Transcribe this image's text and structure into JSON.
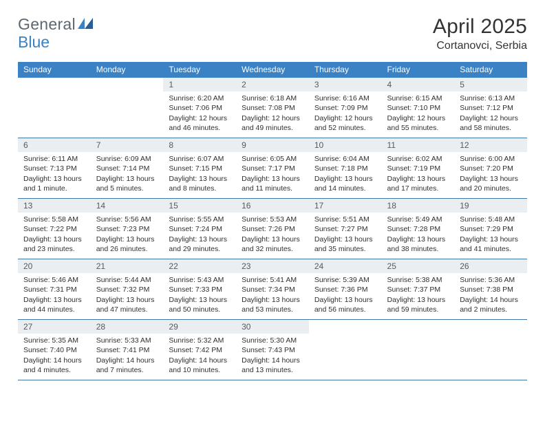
{
  "logo": {
    "part1": "General",
    "part2": "Blue"
  },
  "title": "April 2025",
  "location": "Cortanovci, Serbia",
  "colors": {
    "header_bg": "#3b82c4",
    "header_text": "#ffffff",
    "daynum_bg": "#ebeef0",
    "daynum_text": "#555a5e",
    "border": "#3f76a8",
    "body_text": "#2f2f2f",
    "logo_gray": "#5c6770",
    "logo_blue": "#3b82c4"
  },
  "day_headers": [
    "Sunday",
    "Monday",
    "Tuesday",
    "Wednesday",
    "Thursday",
    "Friday",
    "Saturday"
  ],
  "weeks": [
    [
      null,
      null,
      {
        "num": "1",
        "sunrise": "Sunrise: 6:20 AM",
        "sunset": "Sunset: 7:06 PM",
        "daylight": "Daylight: 12 hours and 46 minutes."
      },
      {
        "num": "2",
        "sunrise": "Sunrise: 6:18 AM",
        "sunset": "Sunset: 7:08 PM",
        "daylight": "Daylight: 12 hours and 49 minutes."
      },
      {
        "num": "3",
        "sunrise": "Sunrise: 6:16 AM",
        "sunset": "Sunset: 7:09 PM",
        "daylight": "Daylight: 12 hours and 52 minutes."
      },
      {
        "num": "4",
        "sunrise": "Sunrise: 6:15 AM",
        "sunset": "Sunset: 7:10 PM",
        "daylight": "Daylight: 12 hours and 55 minutes."
      },
      {
        "num": "5",
        "sunrise": "Sunrise: 6:13 AM",
        "sunset": "Sunset: 7:12 PM",
        "daylight": "Daylight: 12 hours and 58 minutes."
      }
    ],
    [
      {
        "num": "6",
        "sunrise": "Sunrise: 6:11 AM",
        "sunset": "Sunset: 7:13 PM",
        "daylight": "Daylight: 13 hours and 1 minute."
      },
      {
        "num": "7",
        "sunrise": "Sunrise: 6:09 AM",
        "sunset": "Sunset: 7:14 PM",
        "daylight": "Daylight: 13 hours and 5 minutes."
      },
      {
        "num": "8",
        "sunrise": "Sunrise: 6:07 AM",
        "sunset": "Sunset: 7:15 PM",
        "daylight": "Daylight: 13 hours and 8 minutes."
      },
      {
        "num": "9",
        "sunrise": "Sunrise: 6:05 AM",
        "sunset": "Sunset: 7:17 PM",
        "daylight": "Daylight: 13 hours and 11 minutes."
      },
      {
        "num": "10",
        "sunrise": "Sunrise: 6:04 AM",
        "sunset": "Sunset: 7:18 PM",
        "daylight": "Daylight: 13 hours and 14 minutes."
      },
      {
        "num": "11",
        "sunrise": "Sunrise: 6:02 AM",
        "sunset": "Sunset: 7:19 PM",
        "daylight": "Daylight: 13 hours and 17 minutes."
      },
      {
        "num": "12",
        "sunrise": "Sunrise: 6:00 AM",
        "sunset": "Sunset: 7:20 PM",
        "daylight": "Daylight: 13 hours and 20 minutes."
      }
    ],
    [
      {
        "num": "13",
        "sunrise": "Sunrise: 5:58 AM",
        "sunset": "Sunset: 7:22 PM",
        "daylight": "Daylight: 13 hours and 23 minutes."
      },
      {
        "num": "14",
        "sunrise": "Sunrise: 5:56 AM",
        "sunset": "Sunset: 7:23 PM",
        "daylight": "Daylight: 13 hours and 26 minutes."
      },
      {
        "num": "15",
        "sunrise": "Sunrise: 5:55 AM",
        "sunset": "Sunset: 7:24 PM",
        "daylight": "Daylight: 13 hours and 29 minutes."
      },
      {
        "num": "16",
        "sunrise": "Sunrise: 5:53 AM",
        "sunset": "Sunset: 7:26 PM",
        "daylight": "Daylight: 13 hours and 32 minutes."
      },
      {
        "num": "17",
        "sunrise": "Sunrise: 5:51 AM",
        "sunset": "Sunset: 7:27 PM",
        "daylight": "Daylight: 13 hours and 35 minutes."
      },
      {
        "num": "18",
        "sunrise": "Sunrise: 5:49 AM",
        "sunset": "Sunset: 7:28 PM",
        "daylight": "Daylight: 13 hours and 38 minutes."
      },
      {
        "num": "19",
        "sunrise": "Sunrise: 5:48 AM",
        "sunset": "Sunset: 7:29 PM",
        "daylight": "Daylight: 13 hours and 41 minutes."
      }
    ],
    [
      {
        "num": "20",
        "sunrise": "Sunrise: 5:46 AM",
        "sunset": "Sunset: 7:31 PM",
        "daylight": "Daylight: 13 hours and 44 minutes."
      },
      {
        "num": "21",
        "sunrise": "Sunrise: 5:44 AM",
        "sunset": "Sunset: 7:32 PM",
        "daylight": "Daylight: 13 hours and 47 minutes."
      },
      {
        "num": "22",
        "sunrise": "Sunrise: 5:43 AM",
        "sunset": "Sunset: 7:33 PM",
        "daylight": "Daylight: 13 hours and 50 minutes."
      },
      {
        "num": "23",
        "sunrise": "Sunrise: 5:41 AM",
        "sunset": "Sunset: 7:34 PM",
        "daylight": "Daylight: 13 hours and 53 minutes."
      },
      {
        "num": "24",
        "sunrise": "Sunrise: 5:39 AM",
        "sunset": "Sunset: 7:36 PM",
        "daylight": "Daylight: 13 hours and 56 minutes."
      },
      {
        "num": "25",
        "sunrise": "Sunrise: 5:38 AM",
        "sunset": "Sunset: 7:37 PM",
        "daylight": "Daylight: 13 hours and 59 minutes."
      },
      {
        "num": "26",
        "sunrise": "Sunrise: 5:36 AM",
        "sunset": "Sunset: 7:38 PM",
        "daylight": "Daylight: 14 hours and 2 minutes."
      }
    ],
    [
      {
        "num": "27",
        "sunrise": "Sunrise: 5:35 AM",
        "sunset": "Sunset: 7:40 PM",
        "daylight": "Daylight: 14 hours and 4 minutes."
      },
      {
        "num": "28",
        "sunrise": "Sunrise: 5:33 AM",
        "sunset": "Sunset: 7:41 PM",
        "daylight": "Daylight: 14 hours and 7 minutes."
      },
      {
        "num": "29",
        "sunrise": "Sunrise: 5:32 AM",
        "sunset": "Sunset: 7:42 PM",
        "daylight": "Daylight: 14 hours and 10 minutes."
      },
      {
        "num": "30",
        "sunrise": "Sunrise: 5:30 AM",
        "sunset": "Sunset: 7:43 PM",
        "daylight": "Daylight: 14 hours and 13 minutes."
      },
      null,
      null,
      null
    ]
  ]
}
